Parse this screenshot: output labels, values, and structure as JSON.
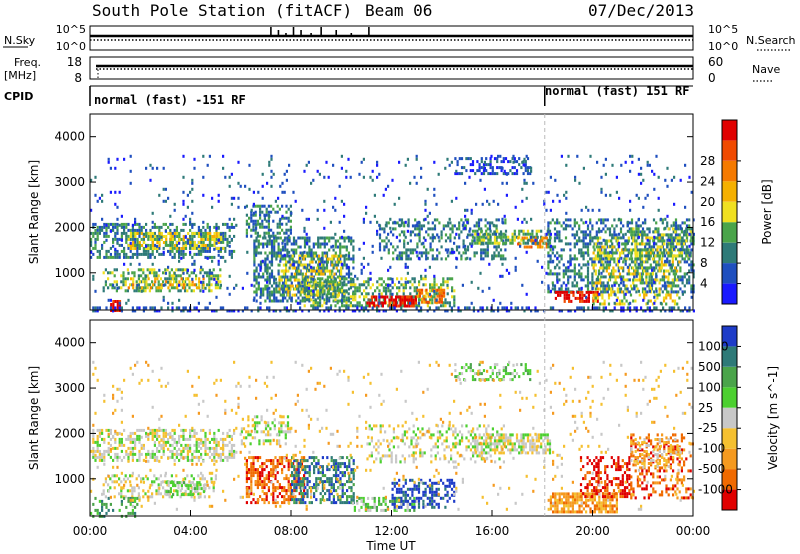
{
  "header": {
    "station": "South Pole Station (fitACF)",
    "beam": "Beam 06",
    "date": "07/Dec/2013"
  },
  "top_panels": {
    "nsky_label": "N.Sky",
    "nsky_ticks": [
      "10^5",
      "10^0"
    ],
    "nsearch_label": "N.Search",
    "nsearch_ticks": [
      "10^5",
      "10^0"
    ],
    "freq_label_line1": "Freq.",
    "freq_label_line2": "[MHz]",
    "freq_ticks": [
      "18",
      "8"
    ],
    "nave_label": "Nave",
    "nave_ticks": [
      "60",
      "0"
    ],
    "cpid_label": "CPID",
    "cpid_segments": [
      {
        "label": "normal (fast) -151 RF",
        "start_hour": 0
      },
      {
        "label": "normal (fast) 151 RF",
        "start_hour": 18.1
      }
    ]
  },
  "x_axis": {
    "label": "Time UT",
    "ticks": [
      "00:00",
      "04:00",
      "08:00",
      "12:00",
      "16:00",
      "20:00",
      "00:00"
    ],
    "range_hours": [
      0,
      24
    ]
  },
  "chart_data": [
    {
      "type": "heatmap",
      "title": "Power",
      "ylabel": "Slant Range [km]",
      "y_ticks": [
        "1000",
        "2000",
        "3000",
        "4000"
      ],
      "ylim": [
        180,
        4500
      ],
      "xlim": [
        0,
        24
      ],
      "colorbar_label": "Power [dB]",
      "colorbar_ticks": [
        "4",
        "8",
        "12",
        "16",
        "20",
        "24",
        "28"
      ],
      "colorbar_colors": [
        "#1a1aff",
        "#1f4fbf",
        "#2e7a78",
        "#4aa44a",
        "#f0e020",
        "#f5b000",
        "#f57a00",
        "#f04a00",
        "#e00000"
      ],
      "regions": [
        {
          "t": [
            0,
            5.7
          ],
          "r": [
            1350,
            2100
          ],
          "level": 2,
          "density": 0.5
        },
        {
          "t": [
            1.5,
            5.3
          ],
          "r": [
            1550,
            1900
          ],
          "level": 4,
          "density": 0.55
        },
        {
          "t": [
            0.5,
            5.2
          ],
          "r": [
            600,
            1100
          ],
          "level": 3,
          "density": 0.45
        },
        {
          "t": [
            1.5,
            4.5
          ],
          "r": [
            700,
            900
          ],
          "level": 5,
          "density": 0.4
        },
        {
          "t": [
            6.2,
            8.0
          ],
          "r": [
            1800,
            2500
          ],
          "level": 2,
          "density": 0.45
        },
        {
          "t": [
            6.5,
            10.5
          ],
          "r": [
            400,
            1800
          ],
          "level": 2,
          "density": 0.55
        },
        {
          "t": [
            7.5,
            10.0
          ],
          "r": [
            500,
            1400
          ],
          "level": 4,
          "density": 0.45
        },
        {
          "t": [
            8.5,
            14.5
          ],
          "r": [
            300,
            900
          ],
          "level": 3,
          "density": 0.5
        },
        {
          "t": [
            11.0,
            13.0
          ],
          "r": [
            300,
            500
          ],
          "level": 8,
          "density": 0.7
        },
        {
          "t": [
            13.0,
            14.2
          ],
          "r": [
            350,
            650
          ],
          "level": 6,
          "density": 0.55
        },
        {
          "t": [
            11.5,
            16.5
          ],
          "r": [
            1300,
            2200
          ],
          "level": 2,
          "density": 0.35
        },
        {
          "t": [
            15.2,
            18.3
          ],
          "r": [
            1650,
            1950
          ],
          "level": 3,
          "density": 0.6
        },
        {
          "t": [
            17.0,
            18.2
          ],
          "r": [
            1550,
            1800
          ],
          "level": 6,
          "density": 0.5
        },
        {
          "t": [
            14.5,
            17.5
          ],
          "r": [
            3200,
            3550
          ],
          "level": 1,
          "density": 0.45
        },
        {
          "t": [
            18.2,
            24.0
          ],
          "r": [
            600,
            2200
          ],
          "level": 2,
          "density": 0.45
        },
        {
          "t": [
            18.5,
            20.2
          ],
          "r": [
            350,
            600
          ],
          "level": 8,
          "density": 0.75
        },
        {
          "t": [
            20.0,
            23.5
          ],
          "r": [
            300,
            1800
          ],
          "level": 4,
          "density": 0.35
        },
        {
          "t": [
            21.5,
            24.0
          ],
          "r": [
            1300,
            2000
          ],
          "level": 3,
          "density": 0.35
        },
        {
          "t": [
            0.8,
            1.2
          ],
          "r": [
            200,
            400
          ],
          "level": 8,
          "density": 0.8
        },
        {
          "t": [
            0,
            24
          ],
          "r": [
            180,
            260
          ],
          "level": 1,
          "density": 0.35
        },
        {
          "t": [
            0,
            24
          ],
          "r": [
            300,
            3600
          ],
          "level": 1,
          "density": 0.05
        }
      ]
    },
    {
      "type": "heatmap",
      "title": "Velocity",
      "ylabel": "Slant Range [km]",
      "y_ticks": [
        "1000",
        "2000",
        "3000",
        "4000"
      ],
      "ylim": [
        180,
        4500
      ],
      "xlim": [
        0,
        24
      ],
      "colorbar_label": "Velocity [m s^-1]",
      "colorbar_ticks": [
        "1000",
        "500",
        "100",
        "25",
        "-25",
        "-100",
        "-500",
        "-1000"
      ],
      "colorbar_colors": [
        "#1e3cc8",
        "#2e7a78",
        "#4aa44a",
        "#4cd030",
        "#c8c8c8",
        "#f5c030",
        "#f59a20",
        "#f06a00",
        "#e00000"
      ],
      "regions": [
        {
          "t": [
            0,
            5.7
          ],
          "r": [
            1400,
            2100
          ],
          "level": 4,
          "density": 0.5
        },
        {
          "t": [
            0.5,
            5.0
          ],
          "r": [
            600,
            1100
          ],
          "level": 4,
          "density": 0.35
        },
        {
          "t": [
            3.0,
            4.5
          ],
          "r": [
            650,
            950
          ],
          "level": 3,
          "density": 0.5
        },
        {
          "t": [
            0,
            2.0
          ],
          "r": [
            200,
            600
          ],
          "level": 2,
          "density": 0.3
        },
        {
          "t": [
            6.2,
            8.5
          ],
          "r": [
            500,
            1500
          ],
          "level": 7,
          "density": 0.55
        },
        {
          "t": [
            6.0,
            8.0
          ],
          "r": [
            1800,
            2400
          ],
          "level": 4,
          "density": 0.35
        },
        {
          "t": [
            8.0,
            10.5
          ],
          "r": [
            500,
            1500
          ],
          "level": 1,
          "density": 0.5
        },
        {
          "t": [
            10.5,
            13.0
          ],
          "r": [
            300,
            600
          ],
          "level": 3,
          "density": 0.6
        },
        {
          "t": [
            12.0,
            14.5
          ],
          "r": [
            400,
            1000
          ],
          "level": 0,
          "density": 0.45
        },
        {
          "t": [
            11.0,
            16.5
          ],
          "r": [
            1400,
            2200
          ],
          "level": 4,
          "density": 0.3
        },
        {
          "t": [
            15.2,
            18.3
          ],
          "r": [
            1600,
            2000
          ],
          "level": 4,
          "density": 0.6
        },
        {
          "t": [
            14.5,
            17.5
          ],
          "r": [
            3200,
            3550
          ],
          "level": 3,
          "density": 0.3
        },
        {
          "t": [
            18.3,
            21.0
          ],
          "r": [
            300,
            700
          ],
          "level": 6,
          "density": 0.75
        },
        {
          "t": [
            19.5,
            21.5
          ],
          "r": [
            600,
            1500
          ],
          "level": 8,
          "density": 0.4
        },
        {
          "t": [
            21.5,
            24.0
          ],
          "r": [
            600,
            2000
          ],
          "level": 7,
          "density": 0.35
        },
        {
          "t": [
            21.5,
            23.5
          ],
          "r": [
            1300,
            1900
          ],
          "level": 5,
          "density": 0.35
        },
        {
          "t": [
            0,
            24
          ],
          "r": [
            300,
            3600
          ],
          "level": 5,
          "density": 0.04
        }
      ]
    }
  ]
}
